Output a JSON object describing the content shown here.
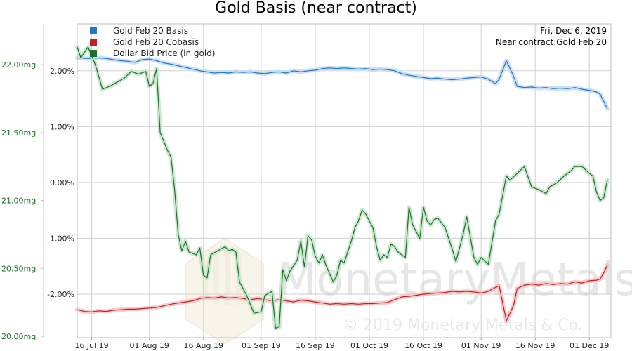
{
  "chart_data": {
    "type": "line",
    "title": "Gold Basis (near contract)",
    "annotations": {
      "date": "Fri, Dec 6, 2019",
      "contract": "Near contract:Gold Feb 20"
    },
    "watermark": {
      "brand": "MonetaryMetals",
      "copyright": "© 2019 Monetary Metals & Co."
    },
    "x_ticks": [
      "16 Jul 19",
      "01 Aug 19",
      "16 Aug 19",
      "01 Sep 19",
      "16 Sep 19",
      "01 Oct 19",
      "16 Oct 19",
      "01 Nov 19",
      "16 Nov 19",
      "01 Dec 19"
    ],
    "x_range": [
      "2019-07-12",
      "2019-12-07"
    ],
    "left_axis": {
      "label_ticks": [
        "22.00mg",
        "21.50mg",
        "21.00mg",
        "20.50mg",
        "20.00mg"
      ],
      "tick_values": [
        22.0,
        21.5,
        21.0,
        20.5,
        20.0
      ],
      "unit": "mg",
      "range": [
        19.99,
        22.3
      ]
    },
    "right_axis": {
      "label_ticks": [
        "2.00%",
        "1.00%",
        "0.00%",
        "-1.00%",
        "-2.00%"
      ],
      "tick_values": [
        2.0,
        1.0,
        0.0,
        -1.0,
        -2.0
      ],
      "unit": "%",
      "range": [
        -2.78,
        2.84
      ]
    },
    "grid": true,
    "legend_position": "top-left",
    "series": [
      {
        "name": "Gold Feb 20 Basis",
        "color": "#1f77c8",
        "axis": "right",
        "points": [
          [
            "2019-07-12",
            2.23
          ],
          [
            "2019-07-14",
            2.22
          ],
          [
            "2019-07-16",
            2.22
          ],
          [
            "2019-07-18",
            2.23
          ],
          [
            "2019-07-20",
            2.22
          ],
          [
            "2019-07-22",
            2.2
          ],
          [
            "2019-07-24",
            2.18
          ],
          [
            "2019-07-26",
            2.17
          ],
          [
            "2019-07-28",
            2.15
          ],
          [
            "2019-07-30",
            2.2
          ],
          [
            "2019-08-01",
            2.21
          ],
          [
            "2019-08-03",
            2.18
          ],
          [
            "2019-08-05",
            2.14
          ],
          [
            "2019-08-07",
            2.12
          ],
          [
            "2019-08-09",
            2.09
          ],
          [
            "2019-08-11",
            2.06
          ],
          [
            "2019-08-13",
            2.03
          ],
          [
            "2019-08-15",
            2.0
          ],
          [
            "2019-08-17",
            1.98
          ],
          [
            "2019-08-19",
            1.96
          ],
          [
            "2019-08-21",
            1.97
          ],
          [
            "2019-08-23",
            1.96
          ],
          [
            "2019-08-25",
            1.98
          ],
          [
            "2019-08-27",
            1.97
          ],
          [
            "2019-08-29",
            1.98
          ],
          [
            "2019-08-31",
            1.96
          ],
          [
            "2019-09-02",
            1.95
          ],
          [
            "2019-09-04",
            1.97
          ],
          [
            "2019-09-06",
            1.98
          ],
          [
            "2019-09-08",
            1.96
          ],
          [
            "2019-09-10",
            2.0
          ],
          [
            "2019-09-12",
            1.98
          ],
          [
            "2019-09-14",
            2.0
          ],
          [
            "2019-09-16",
            2.01
          ],
          [
            "2019-09-18",
            2.04
          ],
          [
            "2019-09-20",
            2.05
          ],
          [
            "2019-09-22",
            2.04
          ],
          [
            "2019-09-24",
            2.05
          ],
          [
            "2019-09-26",
            2.04
          ],
          [
            "2019-09-28",
            2.03
          ],
          [
            "2019-09-30",
            2.04
          ],
          [
            "2019-10-02",
            2.02
          ],
          [
            "2019-10-04",
            2.03
          ],
          [
            "2019-10-06",
            2.02
          ],
          [
            "2019-10-08",
            2.0
          ],
          [
            "2019-10-10",
            1.95
          ],
          [
            "2019-10-12",
            1.92
          ],
          [
            "2019-10-14",
            1.9
          ],
          [
            "2019-10-16",
            1.88
          ],
          [
            "2019-10-18",
            1.86
          ],
          [
            "2019-10-20",
            1.87
          ],
          [
            "2019-10-22",
            1.85
          ],
          [
            "2019-10-24",
            1.84
          ],
          [
            "2019-10-26",
            1.85
          ],
          [
            "2019-10-28",
            1.87
          ],
          [
            "2019-10-30",
            1.88
          ],
          [
            "2019-11-01",
            1.89
          ],
          [
            "2019-11-03",
            1.85
          ],
          [
            "2019-11-05",
            1.77
          ],
          [
            "2019-11-06",
            1.85
          ],
          [
            "2019-11-08",
            2.18
          ],
          [
            "2019-11-10",
            1.9
          ],
          [
            "2019-11-11",
            1.72
          ],
          [
            "2019-11-13",
            1.7
          ],
          [
            "2019-11-15",
            1.71
          ],
          [
            "2019-11-17",
            1.69
          ],
          [
            "2019-11-19",
            1.7
          ],
          [
            "2019-11-21",
            1.68
          ],
          [
            "2019-11-23",
            1.69
          ],
          [
            "2019-11-25",
            1.68
          ],
          [
            "2019-11-27",
            1.7
          ],
          [
            "2019-11-29",
            1.67
          ],
          [
            "2019-12-01",
            1.65
          ],
          [
            "2019-12-03",
            1.62
          ],
          [
            "2019-12-04",
            1.58
          ],
          [
            "2019-12-05",
            1.45
          ],
          [
            "2019-12-06",
            1.32
          ]
        ]
      },
      {
        "name": "Gold Feb 20 Cobasis",
        "color": "#c81e1e",
        "axis": "right",
        "points": [
          [
            "2019-07-12",
            -2.28
          ],
          [
            "2019-07-14",
            -2.31
          ],
          [
            "2019-07-16",
            -2.32
          ],
          [
            "2019-07-18",
            -2.3
          ],
          [
            "2019-07-20",
            -2.31
          ],
          [
            "2019-07-22",
            -2.29
          ],
          [
            "2019-07-24",
            -2.28
          ],
          [
            "2019-07-26",
            -2.27
          ],
          [
            "2019-07-28",
            -2.27
          ],
          [
            "2019-07-30",
            -2.26
          ],
          [
            "2019-08-01",
            -2.25
          ],
          [
            "2019-08-03",
            -2.24
          ],
          [
            "2019-08-05",
            -2.21
          ],
          [
            "2019-08-07",
            -2.18
          ],
          [
            "2019-08-09",
            -2.16
          ],
          [
            "2019-08-11",
            -2.14
          ],
          [
            "2019-08-13",
            -2.12
          ],
          [
            "2019-08-15",
            -2.08
          ],
          [
            "2019-08-17",
            -2.06
          ],
          [
            "2019-08-19",
            -2.07
          ],
          [
            "2019-08-21",
            -2.05
          ],
          [
            "2019-08-23",
            -2.07
          ],
          [
            "2019-08-25",
            -2.06
          ],
          [
            "2019-08-27",
            -2.08
          ],
          [
            "2019-08-29",
            -2.1
          ],
          [
            "2019-08-31",
            -2.08
          ],
          [
            "2019-09-02",
            -2.1
          ],
          [
            "2019-09-04",
            -2.12
          ],
          [
            "2019-09-06",
            -2.1
          ],
          [
            "2019-09-08",
            -2.12
          ],
          [
            "2019-09-10",
            -2.14
          ],
          [
            "2019-09-12",
            -2.11
          ],
          [
            "2019-09-14",
            -2.12
          ],
          [
            "2019-09-16",
            -2.14
          ],
          [
            "2019-09-18",
            -2.16
          ],
          [
            "2019-09-20",
            -2.18
          ],
          [
            "2019-09-22",
            -2.17
          ],
          [
            "2019-09-24",
            -2.18
          ],
          [
            "2019-09-26",
            -2.17
          ],
          [
            "2019-09-28",
            -2.18
          ],
          [
            "2019-09-30",
            -2.17
          ],
          [
            "2019-10-02",
            -2.17
          ],
          [
            "2019-10-04",
            -2.16
          ],
          [
            "2019-10-06",
            -2.15
          ],
          [
            "2019-10-08",
            -2.1
          ],
          [
            "2019-10-10",
            -2.05
          ],
          [
            "2019-10-12",
            -2.04
          ],
          [
            "2019-10-14",
            -2.02
          ],
          [
            "2019-10-16",
            -2.0
          ],
          [
            "2019-10-18",
            -1.99
          ],
          [
            "2019-10-20",
            -1.98
          ],
          [
            "2019-10-22",
            -1.97
          ],
          [
            "2019-10-24",
            -1.95
          ],
          [
            "2019-10-26",
            -1.96
          ],
          [
            "2019-10-28",
            -1.95
          ],
          [
            "2019-10-30",
            -1.96
          ],
          [
            "2019-11-01",
            -1.98
          ],
          [
            "2019-11-03",
            -1.95
          ],
          [
            "2019-11-05",
            -1.88
          ],
          [
            "2019-11-06",
            -1.85
          ],
          [
            "2019-11-08",
            -2.48
          ],
          [
            "2019-11-10",
            -2.2
          ],
          [
            "2019-11-11",
            -1.9
          ],
          [
            "2019-11-13",
            -1.84
          ],
          [
            "2019-11-15",
            -1.82
          ],
          [
            "2019-11-17",
            -1.84
          ],
          [
            "2019-11-19",
            -1.81
          ],
          [
            "2019-11-21",
            -1.83
          ],
          [
            "2019-11-23",
            -1.81
          ],
          [
            "2019-11-25",
            -1.82
          ],
          [
            "2019-11-27",
            -1.78
          ],
          [
            "2019-11-29",
            -1.8
          ],
          [
            "2019-12-01",
            -1.76
          ],
          [
            "2019-12-03",
            -1.75
          ],
          [
            "2019-12-04",
            -1.73
          ],
          [
            "2019-12-05",
            -1.62
          ],
          [
            "2019-12-06",
            -1.48
          ]
        ]
      },
      {
        "name": "Dollar Bid Price (in gold)",
        "color": "#1e6e32",
        "axis": "left",
        "points": [
          [
            "2019-07-12",
            22.13
          ],
          [
            "2019-07-13",
            22.05
          ],
          [
            "2019-07-15",
            22.13
          ],
          [
            "2019-07-17",
            22.0
          ],
          [
            "2019-07-19",
            21.82
          ],
          [
            "2019-07-21",
            21.84
          ],
          [
            "2019-07-23",
            21.87
          ],
          [
            "2019-07-25",
            21.9
          ],
          [
            "2019-07-27",
            21.95
          ],
          [
            "2019-07-29",
            21.93
          ],
          [
            "2019-07-31",
            21.95
          ],
          [
            "2019-08-01",
            21.84
          ],
          [
            "2019-08-02",
            21.86
          ],
          [
            "2019-08-03",
            21.97
          ],
          [
            "2019-08-04",
            21.5
          ],
          [
            "2019-08-06",
            21.37
          ],
          [
            "2019-08-07",
            21.32
          ],
          [
            "2019-08-08",
            21.08
          ],
          [
            "2019-08-09",
            20.75
          ],
          [
            "2019-08-10",
            20.63
          ],
          [
            "2019-08-11",
            20.7
          ],
          [
            "2019-08-12",
            20.62
          ],
          [
            "2019-08-14",
            20.6
          ],
          [
            "2019-08-15",
            20.65
          ],
          [
            "2019-08-16",
            20.45
          ],
          [
            "2019-08-17",
            20.43
          ],
          [
            "2019-08-18",
            20.6
          ],
          [
            "2019-08-20",
            20.63
          ],
          [
            "2019-08-22",
            20.66
          ],
          [
            "2019-08-23",
            20.63
          ],
          [
            "2019-08-24",
            20.64
          ],
          [
            "2019-08-25",
            20.62
          ],
          [
            "2019-08-26",
            20.4
          ],
          [
            "2019-08-28",
            20.3
          ],
          [
            "2019-08-30",
            20.17
          ],
          [
            "2019-09-01",
            20.18
          ],
          [
            "2019-09-02",
            20.3
          ],
          [
            "2019-09-04",
            20.33
          ],
          [
            "2019-09-05",
            20.06
          ],
          [
            "2019-09-06",
            20.07
          ],
          [
            "2019-09-07",
            20.49
          ],
          [
            "2019-09-08",
            20.41
          ],
          [
            "2019-09-09",
            20.48
          ],
          [
            "2019-09-11",
            20.56
          ],
          [
            "2019-09-12",
            20.7
          ],
          [
            "2019-09-13",
            20.51
          ],
          [
            "2019-09-14",
            20.74
          ],
          [
            "2019-09-15",
            20.71
          ],
          [
            "2019-09-16",
            20.59
          ],
          [
            "2019-09-17",
            20.54
          ],
          [
            "2019-09-18",
            20.6
          ],
          [
            "2019-09-19",
            20.52
          ],
          [
            "2019-09-21",
            20.4
          ],
          [
            "2019-09-22",
            20.45
          ],
          [
            "2019-09-23",
            20.56
          ],
          [
            "2019-09-24",
            20.54
          ],
          [
            "2019-09-25",
            20.62
          ],
          [
            "2019-09-26",
            20.7
          ],
          [
            "2019-09-27",
            20.8
          ],
          [
            "2019-09-28",
            20.85
          ],
          [
            "2019-09-29",
            20.93
          ],
          [
            "2019-09-30",
            20.9
          ],
          [
            "2019-10-01",
            20.85
          ],
          [
            "2019-10-02",
            20.8
          ],
          [
            "2019-10-03",
            20.66
          ],
          [
            "2019-10-04",
            20.56
          ],
          [
            "2019-10-05",
            20.6
          ],
          [
            "2019-10-06",
            20.58
          ],
          [
            "2019-10-07",
            20.68
          ],
          [
            "2019-10-08",
            20.66
          ],
          [
            "2019-10-09",
            20.62
          ],
          [
            "2019-10-11",
            20.58
          ],
          [
            "2019-10-12",
            20.95
          ],
          [
            "2019-10-13",
            20.82
          ],
          [
            "2019-10-15",
            20.72
          ],
          [
            "2019-10-16",
            20.95
          ],
          [
            "2019-10-17",
            20.85
          ],
          [
            "2019-10-18",
            20.82
          ],
          [
            "2019-10-19",
            20.86
          ],
          [
            "2019-10-20",
            20.87
          ],
          [
            "2019-10-22",
            20.8
          ],
          [
            "2019-10-24",
            20.64
          ],
          [
            "2019-10-25",
            20.55
          ],
          [
            "2019-10-27",
            20.75
          ],
          [
            "2019-10-28",
            20.88
          ],
          [
            "2019-10-30",
            20.58
          ],
          [
            "2019-10-31",
            20.53
          ],
          [
            "2019-11-01",
            20.58
          ],
          [
            "2019-11-03",
            20.53
          ],
          [
            "2019-11-05",
            20.85
          ],
          [
            "2019-11-06",
            20.9
          ],
          [
            "2019-11-08",
            21.18
          ],
          [
            "2019-11-09",
            21.15
          ],
          [
            "2019-11-11",
            21.2
          ],
          [
            "2019-11-13",
            21.25
          ],
          [
            "2019-11-15",
            21.1
          ],
          [
            "2019-11-17",
            21.08
          ],
          [
            "2019-11-19",
            21.05
          ],
          [
            "2019-11-20",
            21.1
          ],
          [
            "2019-11-22",
            21.13
          ],
          [
            "2019-11-24",
            21.18
          ],
          [
            "2019-11-26",
            21.22
          ],
          [
            "2019-11-27",
            21.25
          ],
          [
            "2019-11-29",
            21.25
          ],
          [
            "2019-12-01",
            21.2
          ],
          [
            "2019-12-02",
            21.18
          ],
          [
            "2019-12-03",
            21.06
          ],
          [
            "2019-12-04",
            21.0
          ],
          [
            "2019-12-05",
            21.02
          ],
          [
            "2019-12-06",
            21.15
          ]
        ]
      }
    ]
  }
}
